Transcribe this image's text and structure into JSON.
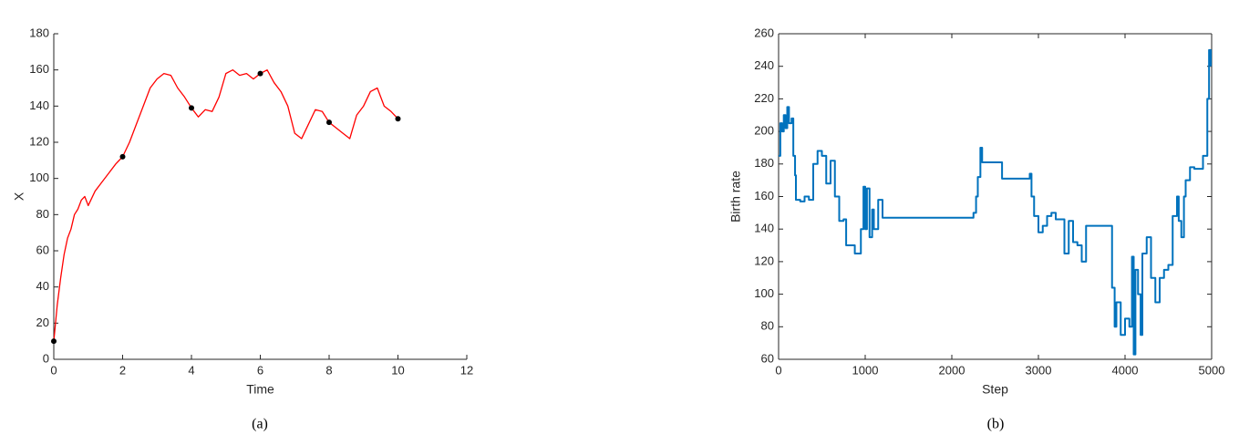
{
  "chart_data": [
    {
      "type": "line",
      "xlabel": "Time",
      "ylabel": "X",
      "caption": "(a)",
      "xlim": [
        0,
        12
      ],
      "ylim": [
        0,
        180
      ],
      "xticks": [
        0,
        2,
        4,
        6,
        8,
        10,
        12
      ],
      "yticks": [
        0,
        20,
        40,
        60,
        80,
        100,
        120,
        140,
        160,
        180
      ],
      "box": false,
      "series": [
        {
          "color": "#ff0000",
          "style": "line",
          "x": [
            0,
            0.1,
            0.2,
            0.3,
            0.4,
            0.5,
            0.6,
            0.7,
            0.8,
            0.9,
            1.0,
            1.2,
            1.4,
            1.6,
            1.8,
            2.0,
            2.2,
            2.4,
            2.6,
            2.8,
            3.0,
            3.2,
            3.4,
            3.6,
            3.8,
            4.0,
            4.2,
            4.4,
            4.6,
            4.8,
            5.0,
            5.2,
            5.4,
            5.6,
            5.8,
            6.0,
            6.2,
            6.4,
            6.6,
            6.8,
            7.0,
            7.2,
            7.4,
            7.6,
            7.8,
            8.0,
            8.2,
            8.4,
            8.6,
            8.8,
            9.0,
            9.2,
            9.4,
            9.6,
            9.8,
            10.0
          ],
          "values": [
            10,
            30,
            45,
            58,
            67,
            72,
            80,
            83,
            88,
            90,
            85,
            93,
            98,
            103,
            108,
            112,
            120,
            130,
            140,
            150,
            155,
            158,
            157,
            150,
            145,
            139,
            134,
            138,
            137,
            145,
            158,
            160,
            157,
            158,
            155,
            158,
            160,
            153,
            148,
            140,
            125,
            122,
            130,
            138,
            137,
            131,
            128,
            125,
            122,
            135,
            140,
            148,
            150,
            140,
            137,
            133
          ]
        },
        {
          "color": "#000000",
          "style": "markers",
          "x": [
            0,
            2,
            4,
            6,
            8,
            10
          ],
          "values": [
            10,
            112,
            139,
            158,
            131,
            133
          ]
        }
      ]
    },
    {
      "type": "line",
      "xlabel": "Step",
      "ylabel": "Birth rate",
      "caption": "(b)",
      "xlim": [
        0,
        5000
      ],
      "ylim": [
        60,
        260
      ],
      "xticks": [
        0,
        1000,
        2000,
        3000,
        4000,
        5000
      ],
      "yticks": [
        60,
        80,
        100,
        120,
        140,
        160,
        180,
        200,
        220,
        240,
        260
      ],
      "box": true,
      "series": [
        {
          "color": "#0072bd",
          "style": "step",
          "x": [
            0,
            20,
            40,
            60,
            80,
            100,
            120,
            150,
            170,
            190,
            200,
            250,
            300,
            350,
            400,
            450,
            500,
            550,
            600,
            650,
            700,
            750,
            780,
            850,
            880,
            950,
            980,
            1000,
            1020,
            1050,
            1080,
            1100,
            1150,
            1200,
            2250,
            2280,
            2300,
            2330,
            2350,
            2580,
            2900,
            2920,
            2950,
            3000,
            3050,
            3100,
            3150,
            3200,
            3300,
            3350,
            3400,
            3450,
            3500,
            3550,
            3850,
            3880,
            3900,
            3950,
            4000,
            4050,
            4080,
            4100,
            4120,
            4150,
            4180,
            4200,
            4250,
            4300,
            4350,
            4400,
            4450,
            4500,
            4550,
            4600,
            4620,
            4650,
            4680,
            4700,
            4750,
            4800,
            4900,
            4950,
            4970,
            4990
          ],
          "values": [
            185,
            205,
            200,
            210,
            202,
            215,
            205,
            208,
            185,
            173,
            158,
            157,
            160,
            158,
            180,
            188,
            185,
            168,
            182,
            160,
            145,
            146,
            130,
            130,
            125,
            140,
            166,
            140,
            165,
            135,
            152,
            140,
            158,
            147,
            150,
            160,
            172,
            190,
            181,
            171,
            174,
            160,
            148,
            138,
            142,
            148,
            150,
            146,
            125,
            145,
            132,
            130,
            120,
            142,
            104,
            80,
            95,
            75,
            85,
            80,
            123,
            63,
            115,
            100,
            75,
            125,
            135,
            110,
            95,
            110,
            115,
            118,
            148,
            160,
            145,
            135,
            160,
            170,
            178,
            177,
            185,
            220,
            250,
            240
          ]
        }
      ]
    }
  ]
}
